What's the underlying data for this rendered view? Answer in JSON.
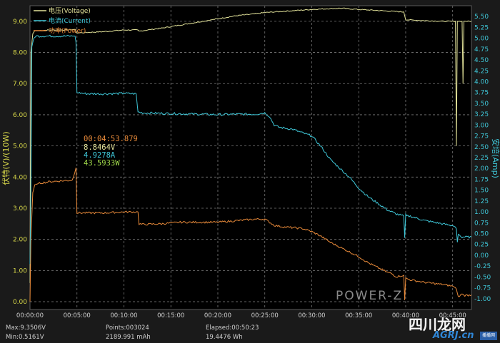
{
  "chart_data": {
    "type": "line",
    "x_unit": "elapsed time",
    "x_ticks": [
      "00:00:00",
      "00:05:00",
      "00:10:00",
      "00:15:00",
      "00:20:00",
      "00:25:00",
      "00:30:00",
      "00:35:00",
      "00:40:00",
      "00:45:00"
    ],
    "xlim_minutes": [
      0,
      47
    ],
    "y_left": {
      "label": "伏特(V)/(10W)",
      "ticks": [
        "0.00",
        "1.00",
        "2.00",
        "3.00",
        "4.00",
        "5.00",
        "6.00",
        "7.00",
        "8.00",
        "9.00"
      ],
      "lim": [
        -0.25,
        9.5
      ]
    },
    "y_right": {
      "label": "安培(Amp)",
      "ticks": [
        "-1.00",
        "-0.75",
        "-0.50",
        "-0.25",
        "0.00",
        "0.25",
        "0.50",
        "0.75",
        "1.00",
        "1.25",
        "1.50",
        "1.75",
        "2.00",
        "2.25",
        "2.50",
        "2.75",
        "3.00",
        "3.25",
        "3.50",
        "3.75",
        "4.00",
        "4.25",
        "4.50",
        "4.75",
        "5.00",
        "5.25",
        "5.50"
      ],
      "lim": [
        -1.25,
        5.75
      ]
    },
    "grid": true,
    "legend_position": "top-left",
    "series": [
      {
        "name": "电压(Voltage)",
        "axis": "left",
        "color": "#e3e39a",
        "x": [
          0,
          0.1,
          0.3,
          0.5,
          1,
          2,
          3,
          4.5,
          4.8,
          5.0,
          5.2,
          6,
          8,
          10,
          11.5,
          11.6,
          12,
          14,
          16,
          18,
          20,
          22,
          24,
          25,
          27,
          30,
          33,
          35,
          38,
          39.8,
          40,
          42,
          44,
          45.3,
          45.4,
          45.5,
          45.6,
          46,
          46.1,
          46.2,
          46.3,
          47
        ],
        "y": [
          0.6,
          8.0,
          8.6,
          8.7,
          8.7,
          8.72,
          8.72,
          8.73,
          8.74,
          8.62,
          8.63,
          8.64,
          8.67,
          8.72,
          8.72,
          8.68,
          8.7,
          8.78,
          8.88,
          8.98,
          9.08,
          9.18,
          9.24,
          9.28,
          9.32,
          9.38,
          9.42,
          9.38,
          9.33,
          9.3,
          9.05,
          9.02,
          9.0,
          9.0,
          5.0,
          9.0,
          9.0,
          9.0,
          7.0,
          9.0,
          9.0,
          9.0
        ]
      },
      {
        "name": "电流(Current)",
        "axis": "right",
        "color": "#3fc7d8",
        "x": [
          0,
          0.1,
          0.2,
          0.4,
          0.7,
          1,
          2,
          4.5,
          4.8,
          4.9,
          5.0,
          6,
          8,
          10,
          11.3,
          11.5,
          12,
          14,
          16,
          18,
          20,
          22,
          24,
          25,
          25.5,
          26,
          26.5,
          28,
          29,
          30,
          31,
          32,
          33,
          34,
          35,
          36,
          37,
          38,
          38.5,
          39,
          39.8,
          39.9,
          40,
          40.1,
          40.5,
          42,
          44,
          45,
          45.3,
          45.4,
          45.5,
          45.6,
          46,
          46.1,
          46.3,
          47
        ],
        "y": [
          -0.2,
          1.5,
          4.8,
          5.0,
          5.05,
          5.05,
          5.05,
          5.05,
          5.05,
          4.9,
          3.75,
          3.72,
          3.72,
          3.73,
          3.72,
          3.3,
          3.28,
          3.27,
          3.26,
          3.25,
          3.24,
          3.25,
          3.25,
          3.28,
          3.2,
          3.0,
          2.95,
          2.9,
          2.82,
          2.75,
          2.5,
          2.2,
          2.0,
          1.8,
          1.55,
          1.35,
          1.2,
          1.05,
          1.0,
          0.95,
          0.9,
          0.4,
          0.95,
          0.9,
          0.9,
          0.8,
          0.72,
          0.68,
          0.65,
          0.6,
          0.3,
          0.5,
          0.4,
          0.42,
          0.42,
          0.42
        ]
      },
      {
        "name": "功率(Power)",
        "axis": "left",
        "color": "#e88a3a",
        "x": [
          0,
          0.1,
          0.3,
          0.5,
          1,
          2,
          4.5,
          4.9,
          5.0,
          6,
          8,
          10,
          11.5,
          11.6,
          12,
          14,
          16,
          18,
          20,
          22,
          24,
          25,
          25.5,
          26,
          27,
          29,
          30,
          31,
          32,
          33,
          34,
          35,
          36,
          37,
          38,
          38.5,
          39,
          39.8,
          39.9,
          40,
          40.5,
          42,
          44,
          45,
          45.3,
          45.4,
          45.6,
          46,
          46.3,
          47
        ],
        "y": [
          0.0,
          2.0,
          3.5,
          3.75,
          3.8,
          3.85,
          3.9,
          4.3,
          2.85,
          2.85,
          2.85,
          2.88,
          2.88,
          2.5,
          2.48,
          2.5,
          2.55,
          2.55,
          2.55,
          2.6,
          2.65,
          2.65,
          2.55,
          2.45,
          2.4,
          2.35,
          2.25,
          2.1,
          1.9,
          1.75,
          1.6,
          1.45,
          1.25,
          1.1,
          0.95,
          0.9,
          0.8,
          0.85,
          0.05,
          0.75,
          0.7,
          0.62,
          0.55,
          0.5,
          0.45,
          0.4,
          0.15,
          0.25,
          0.2,
          0.22
        ]
      }
    ],
    "cursor": {
      "time": "00:04:53.879",
      "voltage": "8.8464V",
      "current": "4.9278A",
      "power": "43.5933W"
    }
  },
  "brand_text": "POWER-Z",
  "stats": {
    "max": "Max:9.3506V",
    "min": "Min:0.5161V",
    "points": "Points:003024",
    "capacity_mah": "2189.991 mAh",
    "elapsed": "Elapsed:00:50:23",
    "energy_wh": "19.4476 Wh",
    "time_partial": "00:40:00"
  },
  "watermark": {
    "text_cn": "四川龙网",
    "text_sub": "AGRJ.cn",
    "badge": "播播网"
  },
  "colors": {
    "background": "#1a1a1a",
    "grid": "#7a7a7a",
    "left_axis": "#d8d84a",
    "right_axis": "#3fc7d8"
  }
}
